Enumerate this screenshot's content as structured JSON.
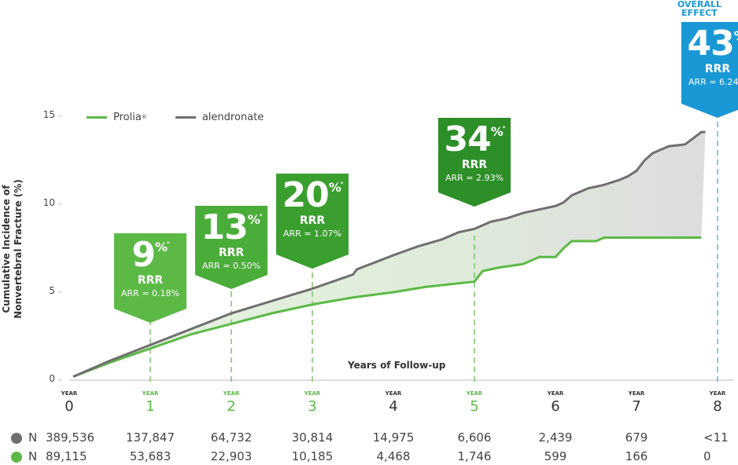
{
  "chart_data": {
    "type": "line",
    "ylabel_line1": "Cumulative Incidence of",
    "ylabel_line2": "Nonvertebral Fracture (%)",
    "xlabel": "Years of Follow-up",
    "ylim": [
      0,
      15
    ],
    "yticks": [
      "0",
      "5",
      "10",
      "15"
    ],
    "xlim": [
      0,
      8
    ],
    "year_word": "YEAR",
    "xticks": [
      "0",
      "1",
      "2",
      "3",
      "4",
      "5",
      "6",
      "7",
      "8"
    ],
    "highlighted_years": [
      1,
      2,
      3,
      5,
      8
    ],
    "legend_position": "top-left",
    "series": [
      {
        "name": "Prolia",
        "name_mark": "®",
        "color": "#5cb946",
        "points": [
          [
            0.05,
            0.2
          ],
          [
            0.5,
            1.0
          ],
          [
            1.0,
            1.8
          ],
          [
            1.5,
            2.6
          ],
          [
            2.0,
            3.2
          ],
          [
            2.5,
            3.8
          ],
          [
            3.0,
            4.3
          ],
          [
            3.5,
            4.7
          ],
          [
            4.0,
            5.0
          ],
          [
            4.4,
            5.3
          ],
          [
            5.0,
            5.6
          ],
          [
            5.05,
            5.9
          ],
          [
            5.1,
            6.2
          ],
          [
            5.3,
            6.4
          ],
          [
            5.6,
            6.6
          ],
          [
            5.8,
            7.0
          ],
          [
            6.0,
            7.0
          ],
          [
            6.1,
            7.5
          ],
          [
            6.2,
            7.9
          ],
          [
            6.5,
            7.9
          ],
          [
            6.6,
            8.1
          ],
          [
            7.0,
            8.1
          ],
          [
            7.6,
            8.1
          ],
          [
            7.8,
            8.1
          ]
        ]
      },
      {
        "name": "alendronate",
        "color": "#6f6f6f",
        "points": [
          [
            0.05,
            0.2
          ],
          [
            0.5,
            1.1
          ],
          [
            1.0,
            2.0
          ],
          [
            1.5,
            2.9
          ],
          [
            2.0,
            3.8
          ],
          [
            2.5,
            4.5
          ],
          [
            3.0,
            5.2
          ],
          [
            3.5,
            6.0
          ],
          [
            3.55,
            6.3
          ],
          [
            4.0,
            7.1
          ],
          [
            4.3,
            7.6
          ],
          [
            4.6,
            8.0
          ],
          [
            4.7,
            8.2
          ],
          [
            4.8,
            8.4
          ],
          [
            5.0,
            8.6
          ],
          [
            5.2,
            9.0
          ],
          [
            5.4,
            9.2
          ],
          [
            5.6,
            9.5
          ],
          [
            5.8,
            9.7
          ],
          [
            6.0,
            9.9
          ],
          [
            6.1,
            10.1
          ],
          [
            6.2,
            10.5
          ],
          [
            6.4,
            10.9
          ],
          [
            6.6,
            11.1
          ],
          [
            6.8,
            11.4
          ],
          [
            6.9,
            11.6
          ],
          [
            7.0,
            11.9
          ],
          [
            7.1,
            12.5
          ],
          [
            7.2,
            12.9
          ],
          [
            7.4,
            13.3
          ],
          [
            7.6,
            13.4
          ],
          [
            7.8,
            14.1
          ],
          [
            7.85,
            14.1
          ]
        ]
      }
    ],
    "callouts": [
      {
        "year": "1",
        "pct": "9",
        "rrr": "RRR",
        "arr": "ARR = 0.18%",
        "color": "#5cb946"
      },
      {
        "year": "2",
        "pct": "13",
        "rrr": "RRR",
        "arr": "ARR = 0.50%",
        "color": "#4aad3a"
      },
      {
        "year": "3",
        "pct": "20",
        "rrr": "RRR",
        "arr": "ARR = 1.07%",
        "color": "#3a9f2f"
      },
      {
        "year": "5",
        "pct": "34",
        "rrr": "RRR",
        "arr": "ARR = 2.93%",
        "color": "#2d8f27"
      },
      {
        "year": "8",
        "pct": "43",
        "rrr": "RRR",
        "arr": "ARR = 6.24%",
        "color": "#1a98d5"
      }
    ],
    "percent_symbol": "%",
    "asterisk": "*",
    "overall_label_line1": "OVERALL",
    "overall_label_line2": "EFFECT"
  },
  "n_rows": [
    {
      "label": "N",
      "color": "#6f6f6f",
      "values": [
        "389,536",
        "137,847",
        "64,732",
        "30,814",
        "14,975",
        "6,606",
        "2,439",
        "679",
        "<11"
      ]
    },
    {
      "label": "N",
      "color": "#5cb946",
      "values": [
        "89,115",
        "53,683",
        "22,903",
        "10,185",
        "4,468",
        "1,746",
        "599",
        "166",
        "0"
      ]
    }
  ]
}
